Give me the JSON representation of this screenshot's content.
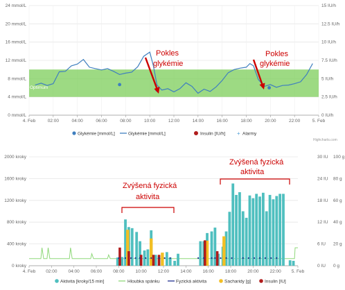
{
  "colors": {
    "target_band": "#7ccd5a",
    "glucose": "#3f7fbf",
    "insulin": "#b01c1c",
    "alarm": "#4a9bd6",
    "activity": "#4fbfbf",
    "sleep": "#8fd87a",
    "phys": "#1f2f8f",
    "carbs": "#f2bf24",
    "annotation": "#cc0000"
  },
  "chart_data": [
    {
      "type": "line",
      "x_ticks": [
        "4. Feb",
        "02:00",
        "04:00",
        "06:00",
        "08:00",
        "10:00",
        "12:00",
        "14:00",
        "16:00",
        "18:00",
        "20:00",
        "22:00",
        "5. Feb"
      ],
      "y_left_ticks": [
        "0 mmol/L",
        "4 mmol/L",
        "8 mmol/L",
        "12 mmol/L",
        "16 mmol/L",
        "20 mmol/L",
        "24 mmol/L"
      ],
      "y_right_ticks": [
        "0 IU/h",
        "2.5 IU/h",
        "5 IU/h",
        "7.5 IU/h",
        "10 IU/h",
        "12.5 IU/h",
        "15 IU/h"
      ],
      "ylim_left": [
        0,
        24
      ],
      "ylim_right": [
        0,
        15
      ],
      "xlim_hours": [
        0,
        24
      ],
      "target_range": [
        4,
        10
      ],
      "target_label": "Optimum",
      "glucose_cgm": {
        "x": [
          0.5,
          1.0,
          1.5,
          2.0,
          2.5,
          3.0,
          3.5,
          4.0,
          4.5,
          5.0,
          5.5,
          6.0,
          6.5,
          7.0,
          7.5,
          8.0,
          8.5,
          9.0,
          9.5,
          10.0,
          10.3,
          10.6,
          11.0,
          11.5,
          12.0,
          12.5,
          13.0,
          13.5,
          14.0,
          14.5,
          15.0,
          15.5,
          16.0,
          16.5,
          17.0,
          17.5,
          18.0,
          18.3,
          18.6,
          19.0,
          19.5,
          20.0,
          20.5,
          21.0,
          21.5,
          22.0,
          22.5,
          23.0,
          23.5
        ],
        "y": [
          6.6,
          7.0,
          6.5,
          6.9,
          9.5,
          9.6,
          10.8,
          11.2,
          12.2,
          10.5,
          10.2,
          9.9,
          10.2,
          9.6,
          8.9,
          9.2,
          9.4,
          10.6,
          12.9,
          13.8,
          10.8,
          6.6,
          5.5,
          5.8,
          5.1,
          5.8,
          7.1,
          6.3,
          4.8,
          5.7,
          5.2,
          6.2,
          7.6,
          9.3,
          10.0,
          10.3,
          10.5,
          11.3,
          10.8,
          7.8,
          6.3,
          6.7,
          6.1,
          6.5,
          6.6,
          6.9,
          7.3,
          8.9,
          11.3
        ]
      },
      "glucose_bg": {
        "x": [
          7.5,
          10.6,
          19.9
        ],
        "y": [
          6.7,
          5.5,
          6.0
        ]
      },
      "series_names": [
        "Glykémie [mmol/L]",
        "Glykémie [mmol/L]",
        "Insulin [IU/h]",
        "Alarmy"
      ]
    },
    {
      "type": "bar",
      "x_ticks": [
        "4. Feb",
        "02:00",
        "04:00",
        "06:00",
        "08:00",
        "10:00",
        "12:00",
        "14:00",
        "16:00",
        "18:00",
        "20:00",
        "22:00",
        "5. Feb"
      ],
      "y_left_ticks": [
        "0 kroky",
        "400 kroky",
        "800 kroky",
        "1200 kroky",
        "1600 kroky",
        "2000 kroky"
      ],
      "y_right1_ticks": [
        "0 IU",
        "6 IU",
        "12 IU",
        "18 IU",
        "24 IU",
        "30 IU"
      ],
      "y_right2_ticks": [
        "0 g",
        "20 g",
        "40 g",
        "60 g",
        "80 g",
        "100 g"
      ],
      "ylim_left": [
        0,
        2000
      ],
      "ylim_right1": [
        0,
        30
      ],
      "ylim_right2": [
        0,
        100
      ],
      "series_names": [
        "Aktivita [kroky/15 min]",
        "Hloubka spánku",
        "Fyzická aktivita",
        "Sacharidy [g]",
        "Insulin [IU]"
      ],
      "activity": {
        "x": [
          7.9,
          8.3,
          8.6,
          8.9,
          9.2,
          9.6,
          9.9,
          10.3,
          10.6,
          10.9,
          11.3,
          11.6,
          11.9,
          12.3,
          12.6,
          13.0,
          13.3,
          15.3,
          15.6,
          15.9,
          16.3,
          16.6,
          16.9,
          17.3,
          17.6,
          17.9,
          18.2,
          18.5,
          18.8,
          19.1,
          19.4,
          19.7,
          20.0,
          20.3,
          20.6,
          20.9,
          21.2,
          21.5,
          21.8,
          22.1,
          22.4,
          22.7,
          23.3,
          23.6
        ],
        "y": [
          150,
          160,
          850,
          710,
          690,
          620,
          450,
          280,
          300,
          650,
          200,
          180,
          200,
          250,
          150,
          90,
          220,
          450,
          450,
          600,
          630,
          700,
          220,
          350,
          630,
          990,
          1510,
          1300,
          1350,
          1000,
          880,
          1290,
          1240,
          1320,
          1270,
          1340,
          1000,
          1300,
          1220,
          1280,
          1320,
          1320,
          100,
          90
        ]
      },
      "carbs_g": {
        "x": [
          8.8,
          10.9,
          11.9,
          15.9,
          17.4
        ],
        "y": [
          33,
          25,
          12,
          23,
          27
        ]
      },
      "insulin_iu": {
        "x": [
          8.1,
          8.9,
          10.0,
          11.1,
          11.6,
          15.7,
          16.8
        ],
        "y": [
          5,
          4,
          3,
          3,
          3,
          7,
          4
        ]
      },
      "phys_activity": {
        "x": [
          8.0,
          8.6,
          9.1,
          9.5,
          9.9,
          10.4,
          10.9,
          11.6,
          12.1,
          12.6,
          15.1,
          15.6,
          16.3,
          16.6,
          17.1,
          17.6,
          18.1,
          19.1,
          19.6,
          20.1,
          20.6,
          21.1,
          21.6,
          22.1
        ],
        "y": [
          140,
          140,
          140,
          140,
          140,
          140,
          140,
          140,
          140,
          140,
          140,
          140,
          140,
          140,
          140,
          140,
          140,
          140,
          140,
          140,
          140,
          140,
          140,
          140
        ]
      },
      "sleep_depth": {
        "x": [
          0.0,
          1.05,
          1.15,
          1.3,
          1.6,
          1.7,
          1.85,
          3.6,
          3.7,
          3.85,
          5.5,
          5.6,
          5.75,
          7.0,
          7.1,
          7.25,
          23.7,
          23.75,
          24.0
        ],
        "y": [
          130,
          130,
          330,
          130,
          130,
          330,
          130,
          130,
          330,
          130,
          130,
          220,
          130,
          130,
          200,
          130,
          130,
          330,
          330
        ]
      }
    }
  ],
  "annotations": {
    "top_left_line1": "Pokles",
    "top_left_line2": "glykémie",
    "top_right_line1": "Pokles",
    "top_right_line2": "glykémie",
    "bottom_left_line1": "Zvýšená fyzická",
    "bottom_left_line2": "aktivita",
    "bottom_right_line1": "Zvýšená fyzická",
    "bottom_right_line2": "aktivita"
  },
  "credit": "Highcharts.com"
}
